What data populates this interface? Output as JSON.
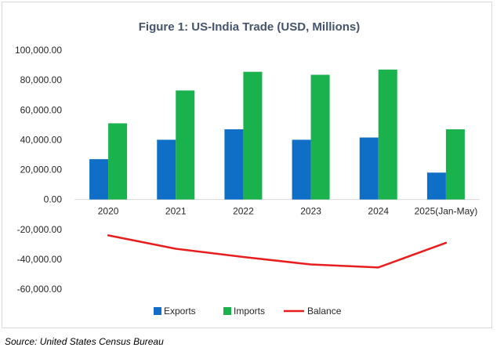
{
  "chart_data": {
    "type": "bar",
    "title": "Figure 1: US-India Trade (USD, Millions)",
    "categories": [
      "2020",
      "2021",
      "2022",
      "2023",
      "2024",
      "2025(Jan-May)"
    ],
    "series": [
      {
        "name": "Exports",
        "type": "bar",
        "color": "#0f6fc6",
        "values": [
          27000,
          40000,
          47000,
          40000,
          41500,
          18000
        ]
      },
      {
        "name": "Imports",
        "type": "bar",
        "color": "#19b24d",
        "values": [
          51000,
          73000,
          85500,
          83500,
          87000,
          47000
        ]
      },
      {
        "name": "Balance",
        "type": "line",
        "color": "#e81e1e",
        "values": [
          -24000,
          -33000,
          -38500,
          -43500,
          -45500,
          -29000
        ]
      }
    ],
    "ylim": [
      -60000,
      100000
    ],
    "yticks": [
      "100,000.00",
      "80,000.00",
      "60,000.00",
      "40,000.00",
      "20,000.00",
      "0.00",
      "-20,000.00",
      "-40,000.00",
      "-60,000.00"
    ],
    "ytick_values": [
      100000,
      80000,
      60000,
      40000,
      20000,
      0,
      -20000,
      -40000,
      -60000
    ],
    "grid": false,
    "legend_position": "bottom"
  },
  "source": "Source: United States Census Bureau"
}
